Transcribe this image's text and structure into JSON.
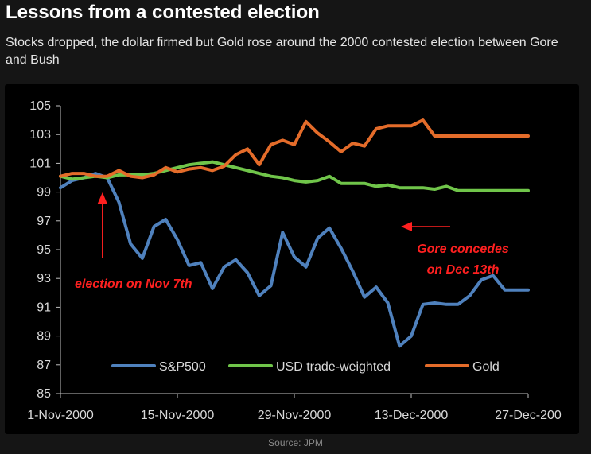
{
  "header": {
    "title": "Lessons from a contested election",
    "subtitle": "Stocks dropped, the dollar firmed but Gold rose around the 2000 contested election between Gore and Bush"
  },
  "footer": {
    "source": "Source: JPM"
  },
  "chart_data": {
    "type": "line",
    "x_tick_labels": [
      "1-Nov-2000",
      "15-Nov-2000",
      "29-Nov-2000",
      "13-Dec-2000",
      "27-Dec-200"
    ],
    "x_tick_index": [
      0,
      10,
      20,
      30,
      40
    ],
    "x": [
      "2000-11-01",
      "2000-11-02",
      "2000-11-03",
      "2000-11-06",
      "2000-11-07",
      "2000-11-08",
      "2000-11-09",
      "2000-11-10",
      "2000-11-13",
      "2000-11-14",
      "2000-11-15",
      "2000-11-16",
      "2000-11-17",
      "2000-11-20",
      "2000-11-21",
      "2000-11-22",
      "2000-11-24",
      "2000-11-27",
      "2000-11-28",
      "2000-11-29",
      "2000-11-30",
      "2000-12-01",
      "2000-12-04",
      "2000-12-05",
      "2000-12-06",
      "2000-12-07",
      "2000-12-08",
      "2000-12-11",
      "2000-12-12",
      "2000-12-13",
      "2000-12-14",
      "2000-12-15",
      "2000-12-18",
      "2000-12-19",
      "2000-12-20",
      "2000-12-21",
      "2000-12-22",
      "2000-12-26",
      "2000-12-27",
      "2000-12-28",
      "2000-12-29"
    ],
    "ylim": [
      85,
      105
    ],
    "y_ticks": [
      85,
      87,
      89,
      91,
      93,
      95,
      97,
      99,
      101,
      103,
      105
    ],
    "grid": false,
    "legend_position": "bottom",
    "series": [
      {
        "name": "S&P500",
        "color": "#4f81bd",
        "values": [
          99.3,
          99.8,
          100.0,
          100.3,
          100.0,
          98.3,
          95.4,
          94.4,
          96.6,
          97.1,
          95.7,
          93.9,
          94.1,
          92.3,
          93.8,
          94.3,
          93.4,
          91.8,
          92.5,
          96.2,
          94.5,
          93.8,
          95.8,
          96.5,
          95.1,
          93.5,
          91.7,
          92.4,
          91.3,
          88.3,
          89.0,
          91.2,
          91.3,
          91.2,
          91.2,
          91.8,
          92.9,
          93.2,
          92.2,
          92.2,
          92.2
        ]
      },
      {
        "name": "USD trade-weighted",
        "color": "#70c54a",
        "values": [
          100.1,
          99.9,
          100.0,
          100.1,
          100.0,
          100.2,
          100.2,
          100.2,
          100.3,
          100.5,
          100.7,
          100.9,
          101.0,
          101.1,
          100.9,
          100.7,
          100.5,
          100.3,
          100.1,
          100.0,
          99.8,
          99.7,
          99.8,
          100.1,
          99.6,
          99.6,
          99.6,
          99.4,
          99.5,
          99.3,
          99.3,
          99.3,
          99.2,
          99.4,
          99.1,
          99.1,
          99.1,
          99.1,
          99.1,
          99.1,
          99.1
        ]
      },
      {
        "name": "Gold",
        "color": "#e46c2a",
        "values": [
          100.1,
          100.3,
          100.3,
          100.1,
          100.1,
          100.5,
          100.1,
          100.0,
          100.2,
          100.7,
          100.4,
          100.6,
          100.7,
          100.5,
          100.8,
          101.6,
          102.0,
          100.9,
          102.3,
          102.6,
          102.3,
          103.9,
          103.1,
          102.5,
          101.8,
          102.4,
          102.2,
          103.4,
          103.6,
          103.6,
          103.6,
          104.0,
          102.9,
          102.9,
          102.9,
          102.9,
          102.9,
          102.9,
          102.9,
          102.9,
          102.9
        ]
      }
    ],
    "annotations": [
      {
        "text": "election on Nov 7th",
        "color": "#ff2020"
      },
      {
        "text": "Gore concedes",
        "color": "#ff2020"
      },
      {
        "text": "on Dec 13th",
        "color": "#ff2020"
      }
    ]
  }
}
